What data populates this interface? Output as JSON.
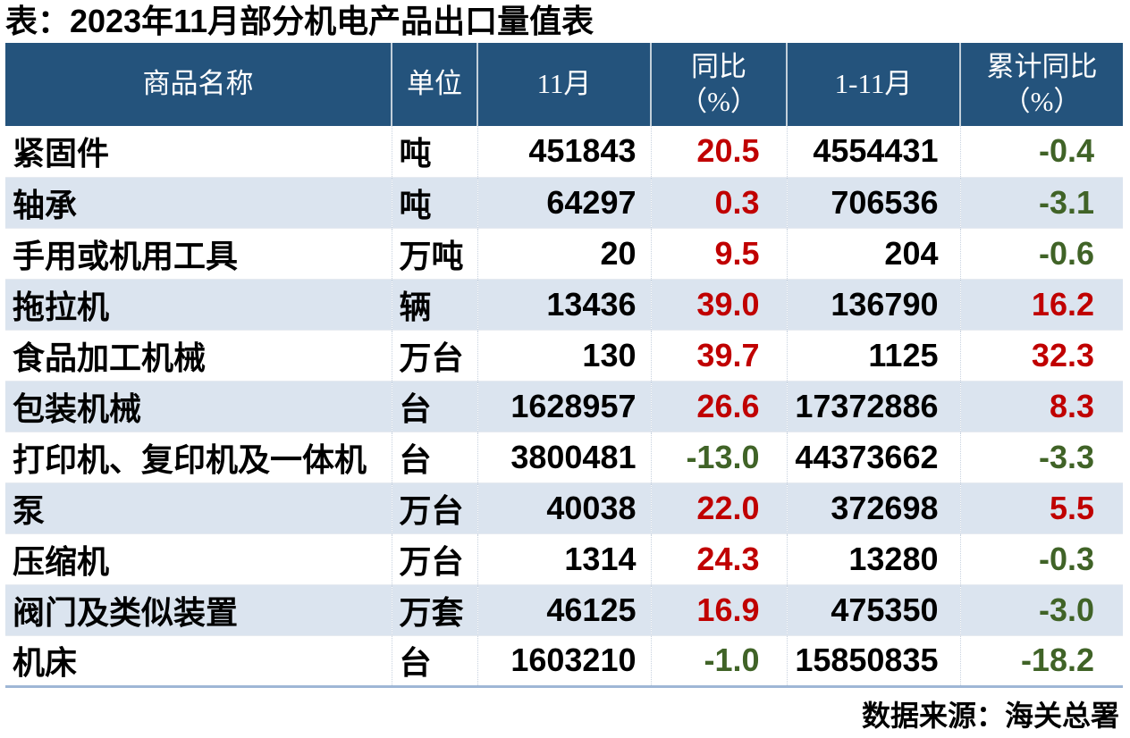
{
  "title": "表：2023年11月部分机电产品出口量值表",
  "source": {
    "text": "数据来源：海关总署"
  },
  "colors": {
    "header_bg": "#24537C",
    "stripe_bg": "#DBE4EF",
    "positive_value": "#C00000",
    "negative_value": "#406327",
    "bottom_rule": "#9FB7D6"
  },
  "table": {
    "headers": [
      {
        "key": "product-name",
        "line1": "商品名称",
        "line2": ""
      },
      {
        "key": "unit",
        "line1": "单位",
        "line2": ""
      },
      {
        "key": "november",
        "line1": "11月",
        "line2": ""
      },
      {
        "key": "yoy",
        "line1": "同比",
        "line2": "（%）"
      },
      {
        "key": "jan-nov",
        "line1": "1-11月",
        "line2": ""
      },
      {
        "key": "cumulative-yoy",
        "line1": "累计同比",
        "line2": "（%）"
      }
    ],
    "rows": [
      {
        "name": "紧固件",
        "unit": "吨",
        "nov": "451843",
        "yoy": "20.5",
        "jan_nov": "4554431",
        "cum_yoy": "-0.4"
      },
      {
        "name": "轴承",
        "unit": "吨",
        "nov": "64297",
        "yoy": "0.3",
        "jan_nov": "706536",
        "cum_yoy": "-3.1"
      },
      {
        "name": "手用或机用工具",
        "unit": "万吨",
        "nov": "20",
        "yoy": "9.5",
        "jan_nov": "204",
        "cum_yoy": "-0.6"
      },
      {
        "name": "拖拉机",
        "unit": "辆",
        "nov": "13436",
        "yoy": "39.0",
        "jan_nov": "136790",
        "cum_yoy": "16.2"
      },
      {
        "name": "食品加工机械",
        "unit": "万台",
        "nov": "130",
        "yoy": "39.7",
        "jan_nov": "1125",
        "cum_yoy": "32.3"
      },
      {
        "name": "包装机械",
        "unit": "台",
        "nov": "1628957",
        "yoy": "26.6",
        "jan_nov": "17372886",
        "cum_yoy": "8.3"
      },
      {
        "name": "打印机、复印机及一体机",
        "unit": "台",
        "nov": "3800481",
        "yoy": "-13.0",
        "jan_nov": "44373662",
        "cum_yoy": "-3.3"
      },
      {
        "name": "泵",
        "unit": "万台",
        "nov": "40038",
        "yoy": "22.0",
        "jan_nov": "372698",
        "cum_yoy": "5.5"
      },
      {
        "name": "压缩机",
        "unit": "万台",
        "nov": "1314",
        "yoy": "24.3",
        "jan_nov": "13280",
        "cum_yoy": "-0.3"
      },
      {
        "name": "阀门及类似装置",
        "unit": "万套",
        "nov": "46125",
        "yoy": "16.9",
        "jan_nov": "475350",
        "cum_yoy": "-3.0"
      },
      {
        "name": "机床",
        "unit": "台",
        "nov": "1603210",
        "yoy": "-1.0",
        "jan_nov": "15850835",
        "cum_yoy": "-18.2"
      }
    ]
  },
  "chart_data": {
    "type": "table",
    "title": "表：2023年11月部分机电产品出口量值表",
    "columns": [
      "商品名称",
      "单位",
      "11月",
      "同比（%）",
      "1-11月",
      "累计同比（%）"
    ],
    "rows": [
      [
        "紧固件",
        "吨",
        451843,
        20.5,
        4554431,
        -0.4
      ],
      [
        "轴承",
        "吨",
        64297,
        0.3,
        706536,
        -3.1
      ],
      [
        "手用或机用工具",
        "万吨",
        20,
        9.5,
        204,
        -0.6
      ],
      [
        "拖拉机",
        "辆",
        13436,
        39.0,
        136790,
        16.2
      ],
      [
        "食品加工机械",
        "万台",
        130,
        39.7,
        1125,
        32.3
      ],
      [
        "包装机械",
        "台",
        1628957,
        26.6,
        17372886,
        8.3
      ],
      [
        "打印机、复印机及一体机",
        "台",
        3800481,
        -13.0,
        44373662,
        -3.3
      ],
      [
        "泵",
        "万台",
        40038,
        22.0,
        372698,
        5.5
      ],
      [
        "压缩机",
        "万台",
        1314,
        24.3,
        13280,
        -0.3
      ],
      [
        "阀门及类似装置",
        "万套",
        46125,
        16.9,
        475350,
        -3.0
      ],
      [
        "机床",
        "台",
        1603210,
        -1.0,
        15850835,
        -18.2
      ]
    ],
    "value_color_rule": "positive=red #C00000, negative=green #406327",
    "source": "数据来源：海关总署"
  }
}
